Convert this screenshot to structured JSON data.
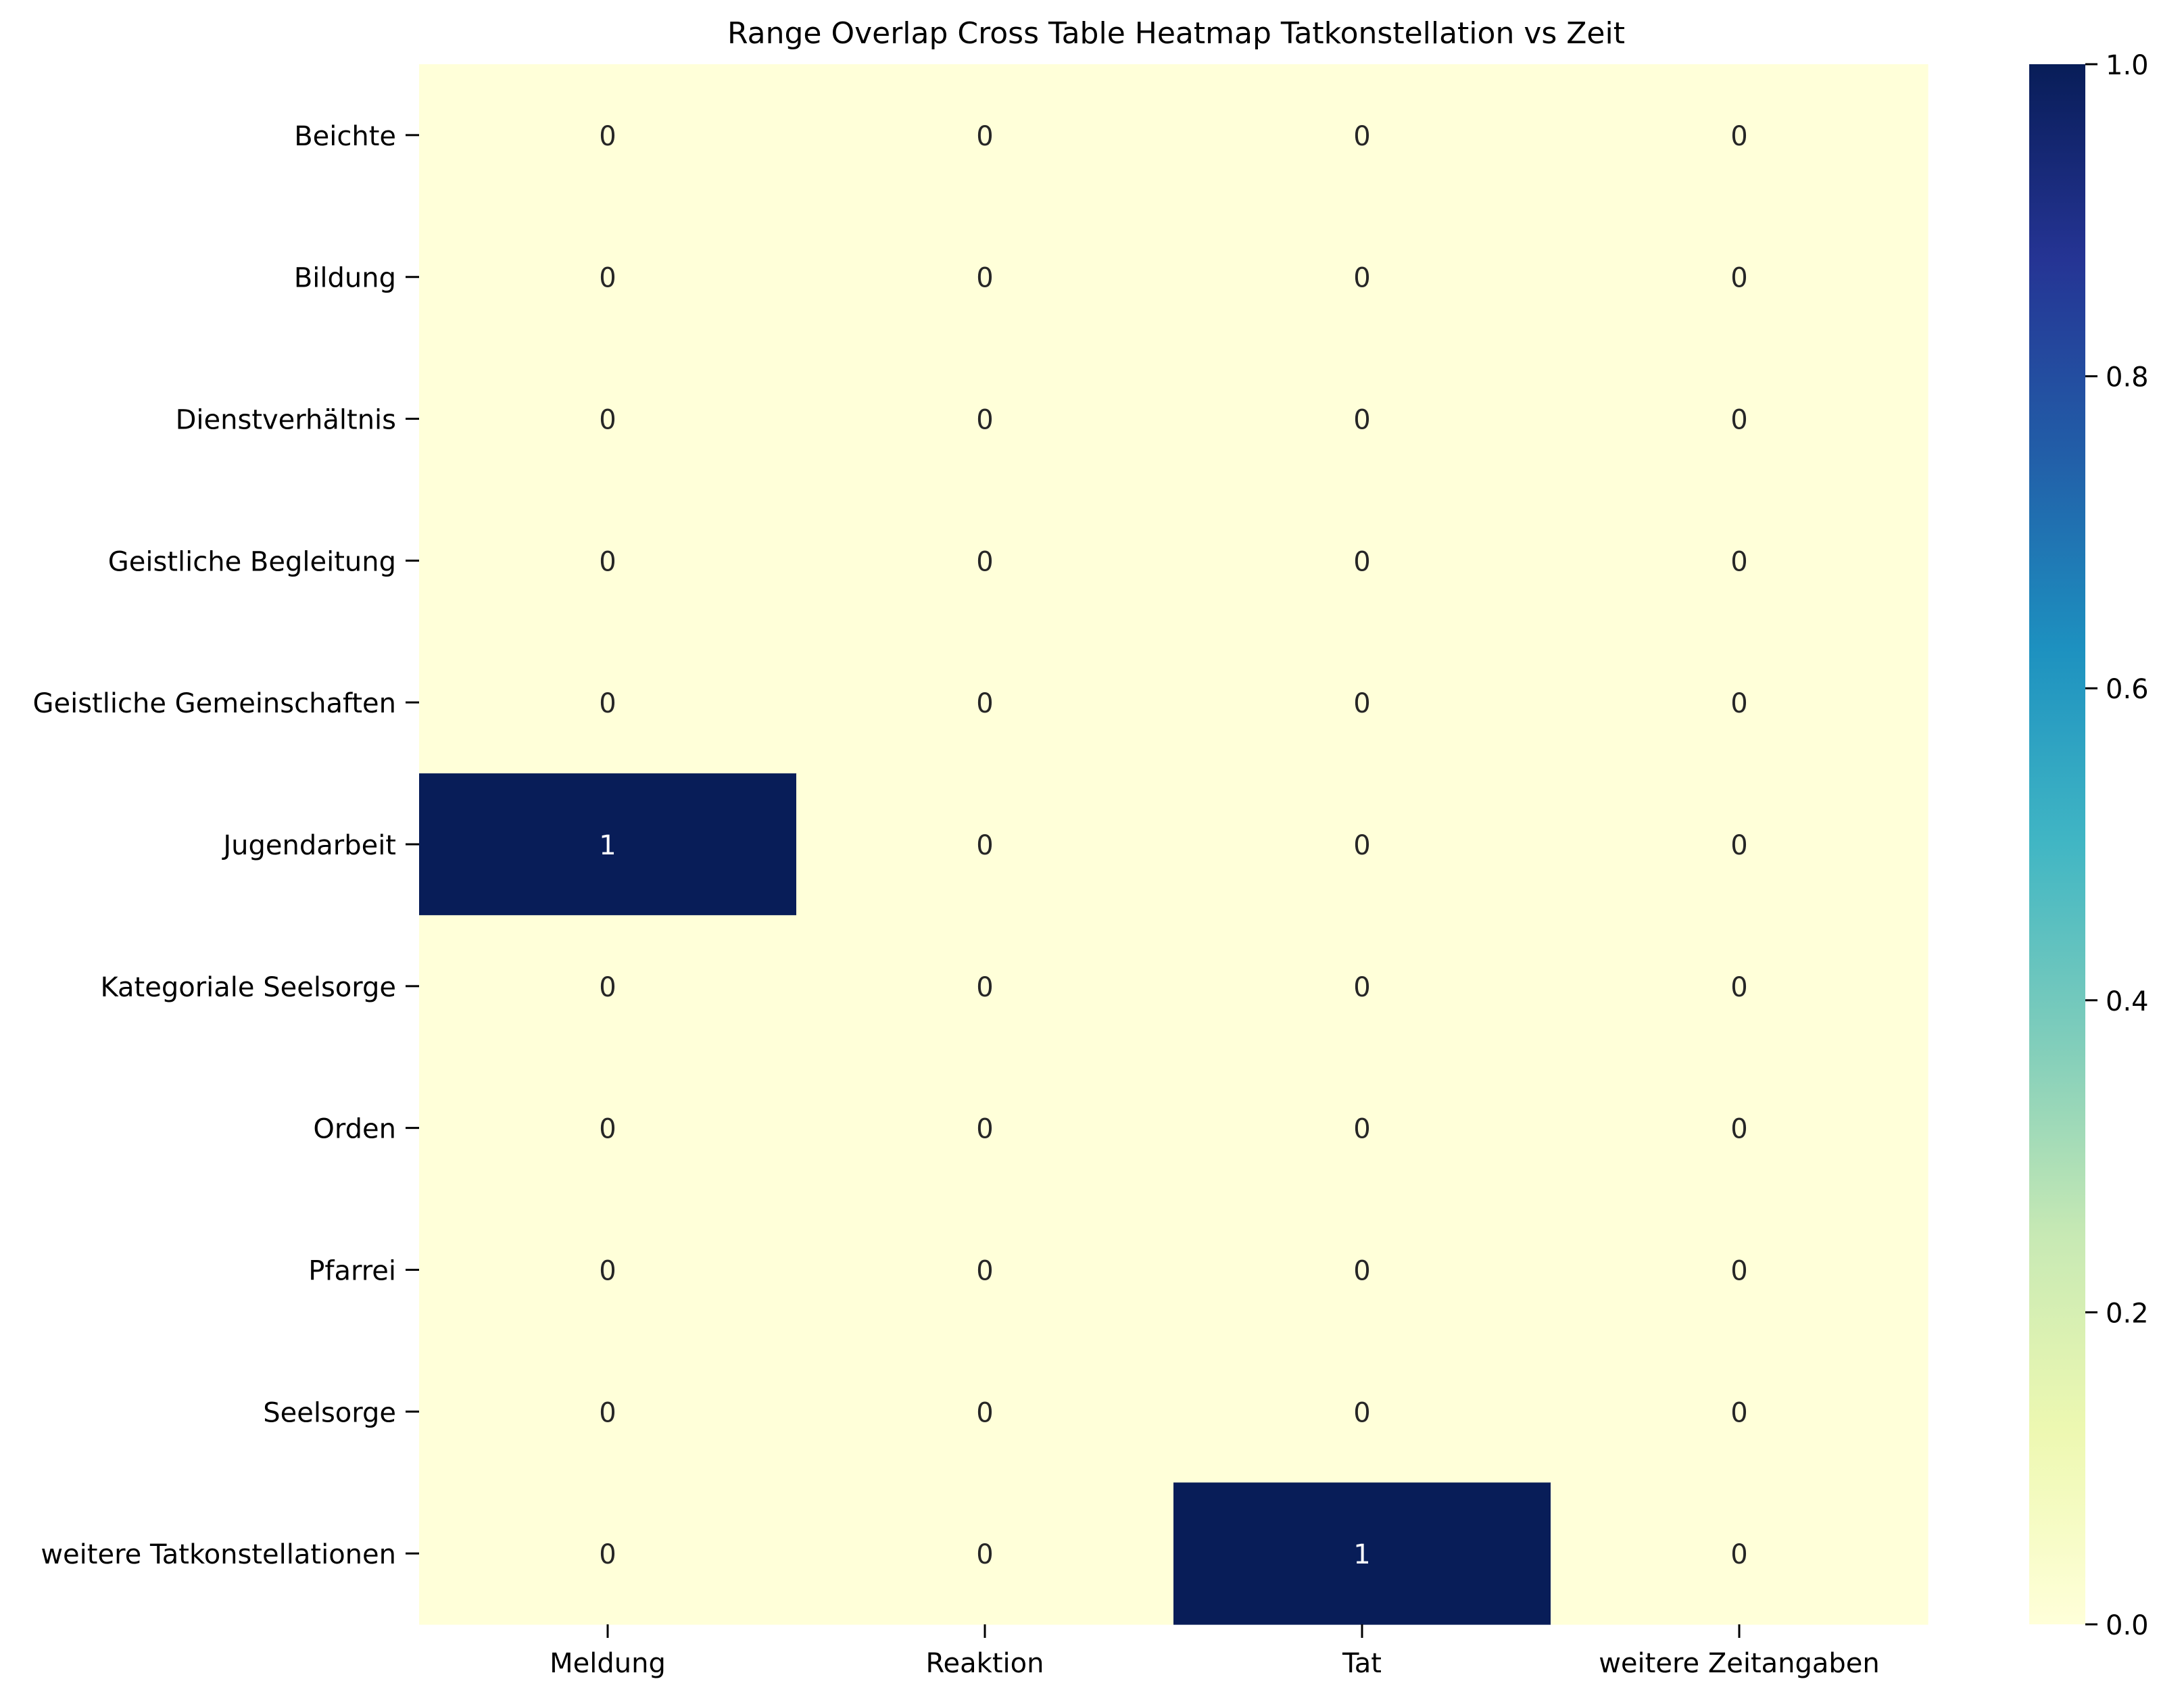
{
  "chart_data": {
    "type": "heatmap",
    "title": "Range Overlap Cross Table Heatmap Tatkonstellation vs Zeit",
    "xlabel": "",
    "ylabel": "",
    "x_categories": [
      "Meldung",
      "Reaktion",
      "Tat",
      "weitere Zeitangaben"
    ],
    "y_categories": [
      "Beichte",
      "Bildung",
      "Dienstverhältnis",
      "Geistliche Begleitung",
      "Geistliche Gemeinschaften",
      "Jugendarbeit",
      "Kategoriale Seelsorge",
      "Orden",
      "Pfarrei",
      "Seelsorge",
      "weitere Tatkonstellationen"
    ],
    "values": [
      [
        0,
        0,
        0,
        0
      ],
      [
        0,
        0,
        0,
        0
      ],
      [
        0,
        0,
        0,
        0
      ],
      [
        0,
        0,
        0,
        0
      ],
      [
        0,
        0,
        0,
        0
      ],
      [
        1,
        0,
        0,
        0
      ],
      [
        0,
        0,
        0,
        0
      ],
      [
        0,
        0,
        0,
        0
      ],
      [
        0,
        0,
        0,
        0
      ],
      [
        0,
        0,
        0,
        0
      ],
      [
        0,
        0,
        1,
        0
      ]
    ],
    "colorbar": {
      "range": [
        0,
        1
      ],
      "ticks": [
        "0.0",
        "0.2",
        "0.4",
        "0.6",
        "0.8",
        "1.0"
      ],
      "colormap": "YlGnBu",
      "low_color": "#ffffd9",
      "high_color": "#081d58"
    },
    "annotations": "cell values shown",
    "grid": false,
    "legend": "colorbar-right"
  }
}
